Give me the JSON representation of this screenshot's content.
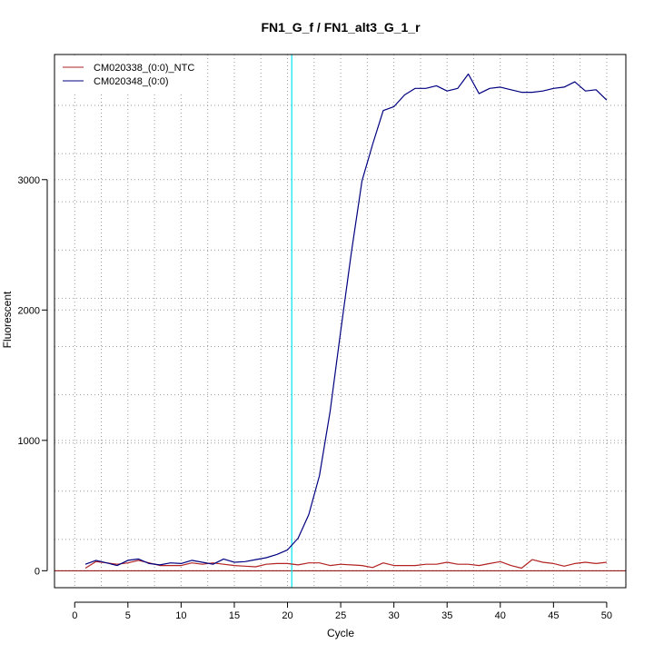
{
  "chart_data": {
    "type": "line",
    "title": "FN1_G_f / FN1_alt3_G_1_r",
    "xlabel": "Cycle",
    "ylabel": "Fluorescent",
    "xlim": [
      -1.9,
      51.8
    ],
    "ylim": [
      -130,
      3960
    ],
    "x_ticks": [
      0,
      5,
      10,
      15,
      20,
      25,
      30,
      35,
      40,
      45,
      50
    ],
    "y_ticks": [
      0,
      1000,
      2000,
      3000
    ],
    "x_grid": [
      2.5,
      7.5,
      12.5,
      17.5,
      22.5,
      27.5,
      32.5,
      37.5,
      42.5,
      47.5
    ],
    "y_grid": [
      240,
      610,
      980,
      1350,
      1720,
      2090,
      2460,
      2830,
      3200,
      3570
    ],
    "grid": true,
    "legend_position": "top-left",
    "threshold_x": 20.4,
    "threshold_color": "#00e5ee",
    "baseline_y": 0,
    "baseline_color": "#8b0000",
    "x": [
      1,
      2,
      3,
      4,
      5,
      6,
      7,
      8,
      9,
      10,
      11,
      12,
      13,
      14,
      15,
      16,
      17,
      18,
      19,
      20,
      21,
      22,
      23,
      24,
      25,
      26,
      27,
      28,
      29,
      30,
      31,
      32,
      33,
      34,
      35,
      36,
      37,
      38,
      39,
      40,
      41,
      42,
      43,
      44,
      45,
      46,
      47,
      48,
      49,
      50
    ],
    "series": [
      {
        "name": "CM020338_(0:0)_NTC",
        "color": "#b22222",
        "values": [
          20,
          70,
          60,
          50,
          60,
          80,
          60,
          40,
          40,
          40,
          60,
          50,
          60,
          50,
          40,
          35,
          30,
          50,
          55,
          55,
          45,
          60,
          60,
          40,
          50,
          45,
          40,
          25,
          60,
          40,
          40,
          40,
          50,
          50,
          65,
          50,
          50,
          40,
          55,
          70,
          40,
          20,
          85,
          65,
          55,
          35,
          55,
          65,
          55,
          65
        ]
      },
      {
        "name": "CM020348_(0:0)",
        "color": "#000080",
        "values": [
          50,
          80,
          60,
          40,
          80,
          90,
          55,
          45,
          60,
          55,
          80,
          65,
          50,
          90,
          65,
          70,
          85,
          100,
          125,
          160,
          250,
          430,
          730,
          1220,
          1840,
          2440,
          2990,
          3270,
          3530,
          3560,
          3650,
          3700,
          3700,
          3720,
          3680,
          3700,
          3810,
          3660,
          3700,
          3710,
          3690,
          3670,
          3670,
          3680,
          3700,
          3710,
          3750,
          3680,
          3690,
          3610
        ]
      }
    ]
  }
}
